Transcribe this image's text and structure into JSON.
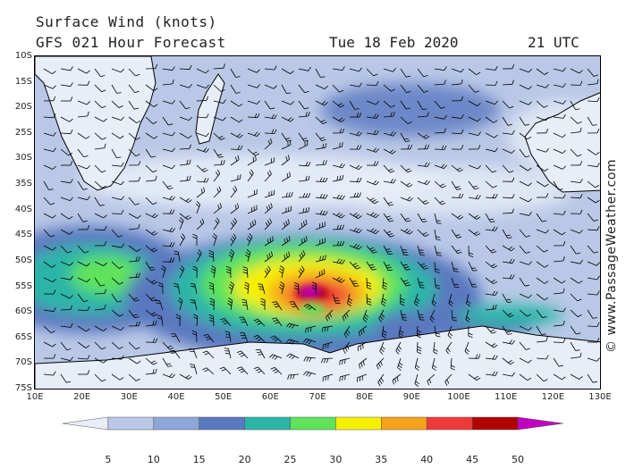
{
  "header": {
    "title": "Surface Wind (knots)",
    "forecast": "GFS 021 Hour Forecast",
    "date": "Tue 18 Feb 2020",
    "time": "21 UTC"
  },
  "credit": "© www.PassageWeather.com",
  "axes": {
    "latitudes": [
      "10S",
      "15S",
      "20S",
      "25S",
      "30S",
      "35S",
      "40S",
      "45S",
      "50S",
      "55S",
      "60S",
      "65S",
      "70S",
      "75S"
    ],
    "longitudes": [
      "10E",
      "20E",
      "30E",
      "40E",
      "50E",
      "60E",
      "70E",
      "80E",
      "90E",
      "100E",
      "110E",
      "120E",
      "130E"
    ]
  },
  "legend": {
    "labels": [
      "5",
      "10",
      "15",
      "20",
      "25",
      "30",
      "35",
      "40",
      "45",
      "50"
    ],
    "colors": [
      "#e8eef8",
      "#b9c8e6",
      "#8fa6d8",
      "#5a78c0",
      "#2ab5a8",
      "#5ee35a",
      "#f5f000",
      "#f7a21b",
      "#ef3a3a",
      "#b00000",
      "#c000c0"
    ]
  },
  "colors": {
    "land": "#e8eef8",
    "ocean_base": "#b9c8e6",
    "coast": "#000000",
    "barb": "#000000"
  }
}
